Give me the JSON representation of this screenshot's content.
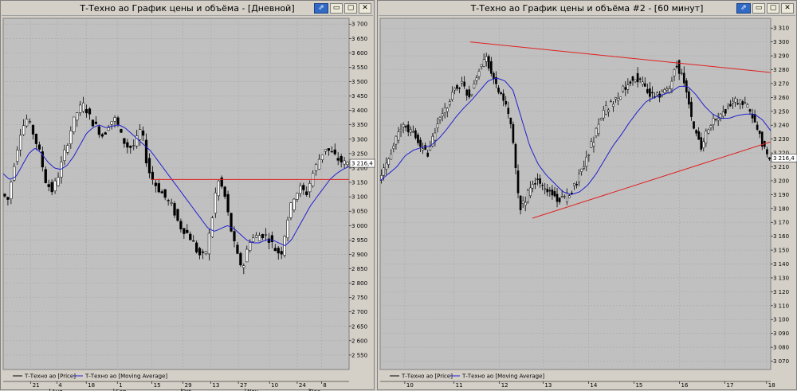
{
  "windows": [
    {
      "title": "Т-Техно ао График цены и объёма - [Дневной]",
      "buttons": {
        "pin": "⇗",
        "minimize": "▭",
        "maximize": "▢",
        "close": "✕"
      }
    },
    {
      "title": "Т-Техно ао График цены и объёма #2 - [60 минут]",
      "buttons": {
        "pin": "⇗",
        "minimize": "▭",
        "maximize": "▢",
        "close": "✕"
      }
    }
  ],
  "colors": {
    "plot_bg": "#c0c0c0",
    "grid": "#a8a8a8",
    "candle": "#000000",
    "ma": "#2020d0",
    "trend": "#e02020",
    "frame_bg": "#d4d0c8"
  },
  "chart_data": [
    {
      "type": "candlestick",
      "series": [
        {
          "name": "Т-Техно ао [Price]"
        },
        {
          "name": "Т-Техно ао [Moving Average]"
        }
      ],
      "ylim": [
        2500,
        3720
      ],
      "y_ticks": [
        2550,
        2600,
        2650,
        2700,
        2750,
        2800,
        2850,
        2900,
        2950,
        3000,
        3050,
        3100,
        3150,
        3200,
        3250,
        3300,
        3350,
        3400,
        3450,
        3500,
        3550,
        3600,
        3650,
        3700
      ],
      "x_day_labels": [
        "21",
        "4",
        "18",
        "1",
        "15",
        "29",
        "13",
        "27",
        "10",
        "24",
        "8"
      ],
      "x_month_labels": [
        "Aug",
        "Sep",
        "Oct",
        "Nov",
        "Dec"
      ],
      "last_value": "3 216,4",
      "price_path": [
        3110,
        3090,
        3220,
        3330,
        3370,
        3320,
        3250,
        3150,
        3120,
        3180,
        3260,
        3340,
        3400,
        3420,
        3370,
        3340,
        3310,
        3360,
        3370,
        3300,
        3270,
        3280,
        3340,
        3200,
        3150,
        3120,
        3090,
        3060,
        3000,
        2980,
        2950,
        2900,
        2890,
        3000,
        3160,
        3120,
        3000,
        2900,
        2850,
        2950,
        2960,
        2970,
        2960,
        2920,
        2900,
        3020,
        3100,
        3130,
        3110,
        3180,
        3230,
        3270,
        3250,
        3230,
        3216.4
      ],
      "ma_path": [
        3180,
        3160,
        3170,
        3210,
        3250,
        3270,
        3250,
        3220,
        3200,
        3195,
        3210,
        3240,
        3280,
        3320,
        3340,
        3350,
        3340,
        3345,
        3350,
        3340,
        3320,
        3300,
        3280,
        3260,
        3230,
        3200,
        3170,
        3140,
        3110,
        3080,
        3050,
        3020,
        2990,
        2980,
        2990,
        3000,
        2990,
        2970,
        2950,
        2940,
        2940,
        2950,
        2950,
        2940,
        2930,
        2950,
        2990,
        3030,
        3070,
        3100,
        3130,
        3160,
        3180,
        3195,
        3205
      ],
      "trend_lines": [
        {
          "from": [
            0.43,
            3160
          ],
          "to": [
            1.0,
            3160
          ]
        }
      ]
    },
    {
      "type": "candlestick",
      "series": [
        {
          "name": "Т-Техно ао [Price]"
        },
        {
          "name": "Т-Техно ао [Moving Average]"
        }
      ],
      "ylim": [
        3064,
        3317
      ],
      "y_ticks": [
        3070,
        3080,
        3090,
        3100,
        3110,
        3120,
        3130,
        3140,
        3150,
        3160,
        3170,
        3180,
        3190,
        3200,
        3210,
        3220,
        3230,
        3240,
        3250,
        3260,
        3270,
        3280,
        3290,
        3300,
        3310
      ],
      "x_day_labels": [
        "10",
        "11",
        "12",
        "13",
        "14",
        "15",
        "16",
        "17",
        "18"
      ],
      "last_value": "3 216,4",
      "price_path": [
        3200,
        3215,
        3230,
        3240,
        3235,
        3225,
        3220,
        3240,
        3250,
        3265,
        3270,
        3260,
        3280,
        3290,
        3270,
        3260,
        3240,
        3180,
        3190,
        3200,
        3195,
        3190,
        3185,
        3190,
        3200,
        3215,
        3230,
        3250,
        3255,
        3260,
        3270,
        3275,
        3270,
        3260,
        3262,
        3265,
        3285,
        3270,
        3240,
        3225,
        3240,
        3245,
        3250,
        3258,
        3255,
        3250,
        3235,
        3216.4
      ],
      "ma_path": [
        3200,
        3205,
        3210,
        3218,
        3222,
        3224,
        3225,
        3230,
        3237,
        3245,
        3252,
        3258,
        3265,
        3272,
        3274,
        3272,
        3265,
        3245,
        3225,
        3212,
        3204,
        3198,
        3192,
        3190,
        3192,
        3197,
        3205,
        3215,
        3225,
        3233,
        3242,
        3250,
        3257,
        3260,
        3262,
        3264,
        3268,
        3268,
        3262,
        3254,
        3248,
        3245,
        3245,
        3247,
        3248,
        3248,
        3244,
        3236
      ],
      "trend_lines": [
        {
          "from": [
            0.23,
            3300
          ],
          "to": [
            1.0,
            3278
          ]
        },
        {
          "from": [
            0.39,
            3173
          ],
          "to": [
            1.0,
            3228
          ]
        }
      ]
    }
  ]
}
